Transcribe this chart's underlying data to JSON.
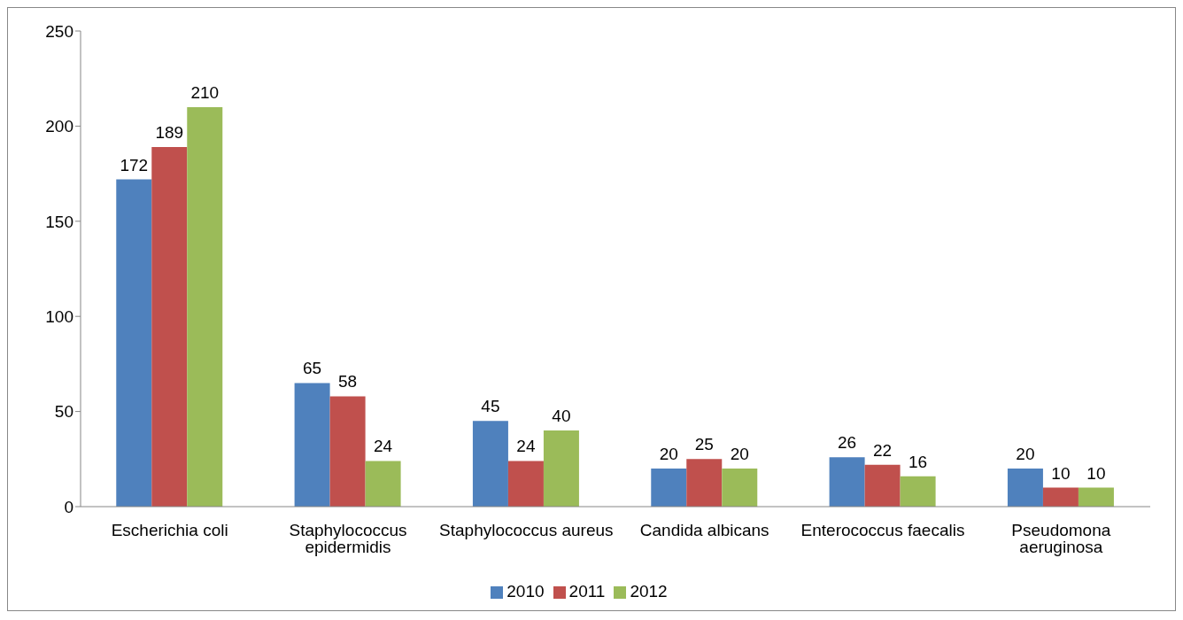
{
  "chart_data": {
    "type": "bar",
    "categories": [
      "Escherichia coli",
      "Staphylococcus epidermidis",
      "Staphylococcus aureus",
      "Candida albicans",
      "Enterococcus faecalis",
      "Pseudomona aeruginosa"
    ],
    "series": [
      {
        "name": "2010",
        "color": "#4f81bd",
        "values": [
          172,
          65,
          45,
          20,
          26,
          20
        ]
      },
      {
        "name": "2011",
        "color": "#c0504d",
        "values": [
          189,
          58,
          24,
          25,
          22,
          10
        ]
      },
      {
        "name": "2012",
        "color": "#9bbb59",
        "values": [
          210,
          24,
          40,
          20,
          16,
          10
        ]
      }
    ],
    "ylim": [
      0,
      250
    ],
    "yticks": [
      0,
      50,
      100,
      150,
      200,
      250
    ],
    "grid": false,
    "legend": "bottom",
    "data_labels": true
  }
}
